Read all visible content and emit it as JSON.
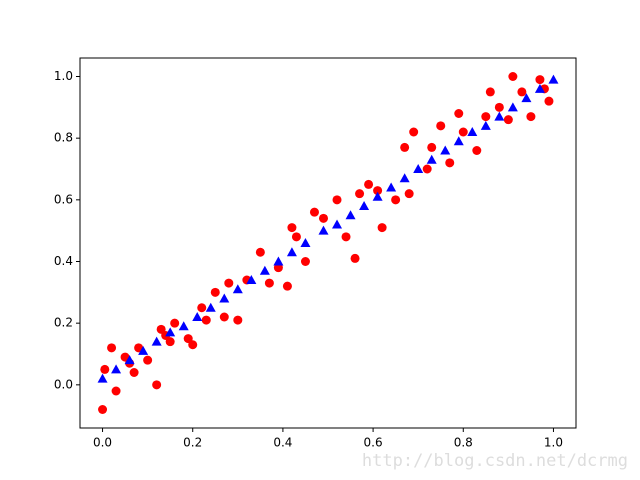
{
  "chart_data": {
    "type": "scatter",
    "xlim": [
      -0.05,
      1.05
    ],
    "ylim": [
      -0.14,
      1.06
    ],
    "xticks": [
      {
        "value": 0,
        "label": "0.0"
      },
      0.2,
      0.4,
      0.6,
      0.8,
      {
        "value": 1,
        "label": "1.0"
      }
    ],
    "yticks": [
      {
        "value": 0,
        "label": "0.0"
      },
      0.2,
      0.4,
      0.6,
      0.8,
      {
        "value": 1,
        "label": "1.0"
      }
    ],
    "series": [
      {
        "color": "#ff0000",
        "marker": "circle",
        "x": [
          0,
          0.005,
          0.02,
          0.03,
          0.05,
          0.07,
          0.08,
          0.1,
          0.12,
          0.13,
          0.14,
          0.16,
          0.19,
          0.2,
          0.22,
          0.23,
          0.25,
          0.27,
          0.28,
          0.3,
          0.32,
          0.35,
          0.37,
          0.39,
          0.41,
          0.42,
          0.43,
          0.45,
          0.47,
          0.49,
          0.52,
          0.54,
          0.56,
          0.57,
          0.59,
          0.61,
          0.62,
          0.65,
          0.67,
          0.68,
          0.69,
          0.72,
          0.73,
          0.75,
          0.77,
          0.79,
          0.8,
          0.83,
          0.85,
          0.86,
          0.88,
          0.9,
          0.91,
          0.93,
          0.95,
          0.97,
          0.99,
          0.98,
          0.15,
          0.06
        ],
        "values": [
          -0.08,
          0.05,
          0.12,
          -0.02,
          0.09,
          0.04,
          0.12,
          0.08,
          0.0,
          0.18,
          0.16,
          0.2,
          0.15,
          0.13,
          0.25,
          0.21,
          0.3,
          0.22,
          0.33,
          0.21,
          0.34,
          0.43,
          0.33,
          0.38,
          0.32,
          0.51,
          0.48,
          0.4,
          0.56,
          0.54,
          0.6,
          0.48,
          0.41,
          0.62,
          0.65,
          0.63,
          0.51,
          0.6,
          0.77,
          0.62,
          0.82,
          0.7,
          0.77,
          0.84,
          0.72,
          0.88,
          0.82,
          0.76,
          0.87,
          0.95,
          0.9,
          0.86,
          1.0,
          0.95,
          0.87,
          0.99,
          0.92,
          0.96,
          0.14,
          0.07
        ]
      },
      {
        "color": "#0000ff",
        "marker": "triangle",
        "x": [
          0,
          0.03,
          0.06,
          0.09,
          0.12,
          0.15,
          0.18,
          0.21,
          0.24,
          0.27,
          0.3,
          0.33,
          0.36,
          0.39,
          0.42,
          0.45,
          0.49,
          0.52,
          0.55,
          0.58,
          0.61,
          0.64,
          0.67,
          0.7,
          0.73,
          0.76,
          0.79,
          0.82,
          0.85,
          0.88,
          0.91,
          0.94,
          0.97,
          1.0
        ],
        "values": [
          0.02,
          0.05,
          0.08,
          0.11,
          0.14,
          0.17,
          0.19,
          0.22,
          0.25,
          0.28,
          0.31,
          0.34,
          0.37,
          0.4,
          0.43,
          0.46,
          0.5,
          0.52,
          0.55,
          0.58,
          0.61,
          0.64,
          0.67,
          0.7,
          0.73,
          0.76,
          0.79,
          0.82,
          0.84,
          0.87,
          0.9,
          0.93,
          0.96,
          0.99
        ]
      }
    ]
  },
  "watermark": "http://blog.csdn.net/dcrmg"
}
